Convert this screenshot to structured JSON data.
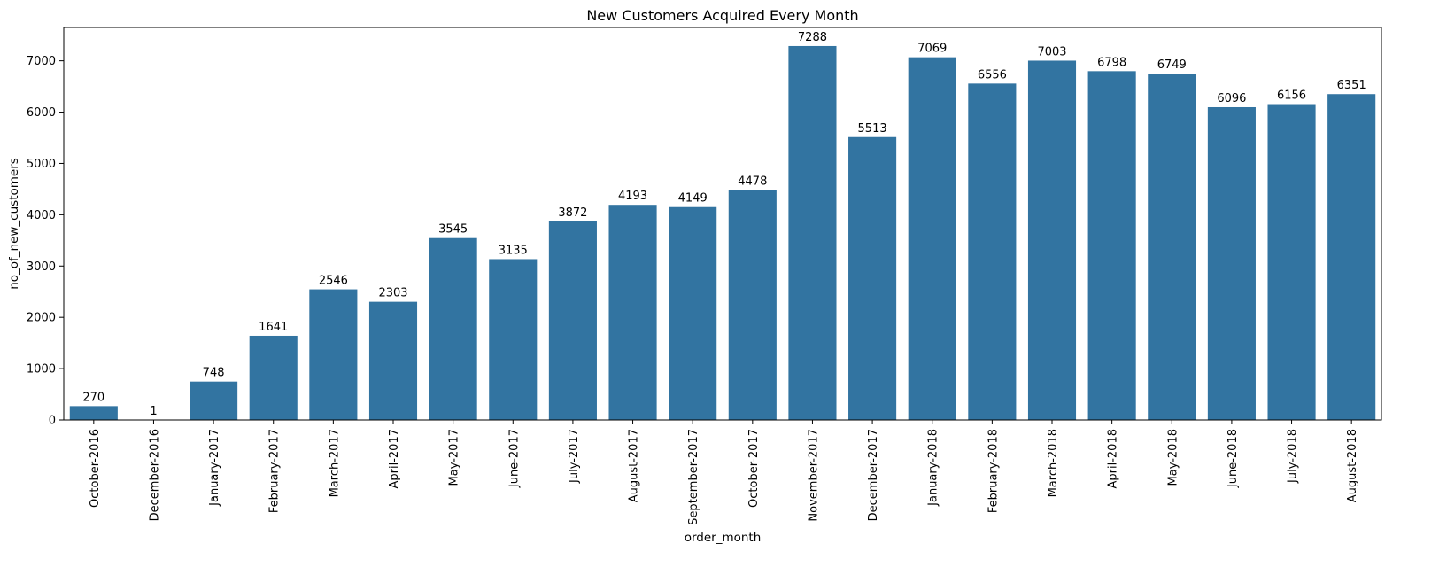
{
  "chart_data": {
    "type": "bar",
    "title": "New Customers Acquired Every Month",
    "xlabel": "order_month",
    "ylabel": "no_of_new_customers",
    "ylim": [
      0,
      7650
    ],
    "yticks": [
      0,
      1000,
      2000,
      3000,
      4000,
      5000,
      6000,
      7000
    ],
    "grid": false,
    "bar_color": "#3274a1",
    "categories": [
      "October-2016",
      "December-2016",
      "January-2017",
      "February-2017",
      "March-2017",
      "April-2017",
      "May-2017",
      "June-2017",
      "July-2017",
      "August-2017",
      "September-2017",
      "October-2017",
      "November-2017",
      "December-2017",
      "January-2018",
      "February-2018",
      "March-2018",
      "April-2018",
      "May-2018",
      "June-2018",
      "July-2018",
      "August-2018"
    ],
    "values": [
      270,
      1,
      748,
      1641,
      2546,
      2303,
      3545,
      3135,
      3872,
      4193,
      4149,
      4478,
      7288,
      5513,
      7069,
      6556,
      7003,
      6798,
      6749,
      6096,
      6156,
      6351
    ]
  }
}
